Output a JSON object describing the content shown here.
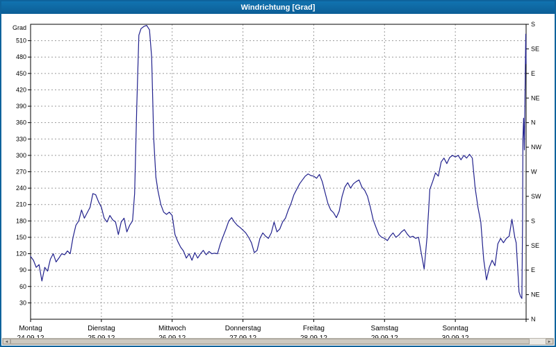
{
  "window": {
    "title": "Windrichtung [Grad]"
  },
  "colors": {
    "titlebar": "#0e639c",
    "window_border": "#0e639c",
    "line": "#20208c",
    "grid": "#9a9a9a",
    "plot_border": "#000000"
  },
  "chart_data": {
    "type": "line",
    "title": "Windrichtung [Grad]",
    "grid": true,
    "legend": null,
    "line_color": "#20208c",
    "y_axis": {
      "label": "Grad",
      "min": 0,
      "max": 540,
      "tick_step": 30,
      "ticks": [
        30,
        60,
        90,
        120,
        150,
        180,
        210,
        240,
        270,
        300,
        330,
        360,
        390,
        420,
        450,
        480,
        510
      ]
    },
    "right_axis": {
      "tick_step_deg": 45,
      "labels_bottom_to_top": [
        "N",
        "NE",
        "E",
        "SE",
        "S",
        "SW",
        "W",
        "NW",
        "N",
        "NE",
        "E",
        "SE",
        "S"
      ]
    },
    "x_axis": {
      "min": 0,
      "max": 7,
      "days": [
        {
          "label": "Montag",
          "date": "24.09.12"
        },
        {
          "label": "Dienstag",
          "date": "25.09.12"
        },
        {
          "label": "Mittwoch",
          "date": "26.09.12"
        },
        {
          "label": "Donnerstag",
          "date": "27.09.12"
        },
        {
          "label": "Freitag",
          "date": "28.09.12"
        },
        {
          "label": "Samstag",
          "date": "29.09.12"
        },
        {
          "label": "Sonntag",
          "date": "30.09.12"
        }
      ]
    },
    "series": [
      {
        "name": "Windrichtung",
        "unit": "Grad",
        "points": [
          [
            0,
            115
          ],
          [
            0.04,
            108
          ],
          [
            0.08,
            95
          ],
          [
            0.12,
            100
          ],
          [
            0.16,
            70
          ],
          [
            0.2,
            95
          ],
          [
            0.24,
            88
          ],
          [
            0.28,
            110
          ],
          [
            0.32,
            120
          ],
          [
            0.36,
            105
          ],
          [
            0.4,
            112
          ],
          [
            0.44,
            120
          ],
          [
            0.48,
            118
          ],
          [
            0.52,
            125
          ],
          [
            0.56,
            120
          ],
          [
            0.6,
            150
          ],
          [
            0.64,
            172
          ],
          [
            0.68,
            180
          ],
          [
            0.72,
            200
          ],
          [
            0.76,
            185
          ],
          [
            0.8,
            195
          ],
          [
            0.84,
            205
          ],
          [
            0.88,
            230
          ],
          [
            0.92,
            228
          ],
          [
            0.96,
            215
          ],
          [
            1,
            205
          ],
          [
            1.04,
            185
          ],
          [
            1.08,
            178
          ],
          [
            1.12,
            190
          ],
          [
            1.16,
            182
          ],
          [
            1.2,
            178
          ],
          [
            1.24,
            155
          ],
          [
            1.28,
            178
          ],
          [
            1.32,
            185
          ],
          [
            1.36,
            160
          ],
          [
            1.4,
            172
          ],
          [
            1.44,
            180
          ],
          [
            1.47,
            230
          ],
          [
            1.5,
            390
          ],
          [
            1.53,
            520
          ],
          [
            1.56,
            532
          ],
          [
            1.6,
            536
          ],
          [
            1.64,
            538
          ],
          [
            1.68,
            530
          ],
          [
            1.71,
            480
          ],
          [
            1.74,
            330
          ],
          [
            1.77,
            260
          ],
          [
            1.8,
            235
          ],
          [
            1.84,
            210
          ],
          [
            1.88,
            196
          ],
          [
            1.92,
            192
          ],
          [
            1.96,
            196
          ],
          [
            2,
            190
          ],
          [
            2.04,
            155
          ],
          [
            2.08,
            142
          ],
          [
            2.12,
            132
          ],
          [
            2.16,
            125
          ],
          [
            2.2,
            112
          ],
          [
            2.24,
            120
          ],
          [
            2.28,
            108
          ],
          [
            2.32,
            122
          ],
          [
            2.36,
            112
          ],
          [
            2.4,
            120
          ],
          [
            2.44,
            126
          ],
          [
            2.48,
            118
          ],
          [
            2.52,
            124
          ],
          [
            2.56,
            120
          ],
          [
            2.6,
            121
          ],
          [
            2.64,
            120
          ],
          [
            2.68,
            138
          ],
          [
            2.72,
            152
          ],
          [
            2.76,
            165
          ],
          [
            2.8,
            180
          ],
          [
            2.84,
            186
          ],
          [
            2.88,
            178
          ],
          [
            2.92,
            172
          ],
          [
            2.96,
            168
          ],
          [
            3,
            163
          ],
          [
            3.04,
            158
          ],
          [
            3.08,
            150
          ],
          [
            3.12,
            140
          ],
          [
            3.16,
            122
          ],
          [
            3.2,
            126
          ],
          [
            3.24,
            148
          ],
          [
            3.28,
            158
          ],
          [
            3.32,
            152
          ],
          [
            3.36,
            148
          ],
          [
            3.4,
            158
          ],
          [
            3.44,
            178
          ],
          [
            3.48,
            160
          ],
          [
            3.52,
            165
          ],
          [
            3.56,
            178
          ],
          [
            3.6,
            185
          ],
          [
            3.64,
            200
          ],
          [
            3.68,
            212
          ],
          [
            3.72,
            228
          ],
          [
            3.76,
            238
          ],
          [
            3.8,
            248
          ],
          [
            3.84,
            255
          ],
          [
            3.88,
            262
          ],
          [
            3.92,
            266
          ],
          [
            3.96,
            263
          ],
          [
            4,
            262
          ],
          [
            4.04,
            258
          ],
          [
            4.08,
            265
          ],
          [
            4.12,
            252
          ],
          [
            4.16,
            232
          ],
          [
            4.2,
            212
          ],
          [
            4.24,
            200
          ],
          [
            4.28,
            195
          ],
          [
            4.32,
            186
          ],
          [
            4.36,
            198
          ],
          [
            4.4,
            225
          ],
          [
            4.44,
            242
          ],
          [
            4.48,
            250
          ],
          [
            4.52,
            240
          ],
          [
            4.56,
            248
          ],
          [
            4.6,
            252
          ],
          [
            4.64,
            255
          ],
          [
            4.68,
            242
          ],
          [
            4.72,
            236
          ],
          [
            4.76,
            225
          ],
          [
            4.8,
            205
          ],
          [
            4.84,
            182
          ],
          [
            4.88,
            168
          ],
          [
            4.92,
            155
          ],
          [
            4.96,
            150
          ],
          [
            5,
            148
          ],
          [
            5.04,
            144
          ],
          [
            5.08,
            152
          ],
          [
            5.12,
            158
          ],
          [
            5.16,
            150
          ],
          [
            5.2,
            154
          ],
          [
            5.24,
            160
          ],
          [
            5.28,
            164
          ],
          [
            5.32,
            156
          ],
          [
            5.36,
            150
          ],
          [
            5.4,
            152
          ],
          [
            5.44,
            148
          ],
          [
            5.48,
            150
          ],
          [
            5.52,
            120
          ],
          [
            5.56,
            92
          ],
          [
            5.6,
            150
          ],
          [
            5.64,
            238
          ],
          [
            5.68,
            252
          ],
          [
            5.72,
            268
          ],
          [
            5.76,
            262
          ],
          [
            5.8,
            288
          ],
          [
            5.84,
            295
          ],
          [
            5.88,
            285
          ],
          [
            5.92,
            296
          ],
          [
            5.96,
            300
          ],
          [
            6,
            297
          ],
          [
            6.04,
            300
          ],
          [
            6.08,
            292
          ],
          [
            6.12,
            300
          ],
          [
            6.16,
            295
          ],
          [
            6.2,
            302
          ],
          [
            6.24,
            295
          ],
          [
            6.28,
            240
          ],
          [
            6.32,
            205
          ],
          [
            6.36,
            178
          ],
          [
            6.4,
            110
          ],
          [
            6.44,
            72
          ],
          [
            6.48,
            95
          ],
          [
            6.52,
            108
          ],
          [
            6.56,
            98
          ],
          [
            6.6,
            138
          ],
          [
            6.64,
            148
          ],
          [
            6.68,
            140
          ],
          [
            6.72,
            148
          ],
          [
            6.76,
            152
          ],
          [
            6.8,
            183
          ],
          [
            6.84,
            150
          ],
          [
            6.86,
            140
          ],
          [
            6.88,
            95
          ],
          [
            6.9,
            50
          ],
          [
            6.92,
            42
          ],
          [
            6.94,
            38
          ],
          [
            6.95,
            180
          ],
          [
            6.955,
            330
          ],
          [
            6.965,
            368
          ],
          [
            6.975,
            310
          ],
          [
            6.985,
            420
          ],
          [
            6.995,
            522
          ],
          [
            7,
            468
          ]
        ]
      }
    ]
  },
  "scrollbar": {
    "left_arrow": "◄",
    "right_arrow": "►"
  }
}
